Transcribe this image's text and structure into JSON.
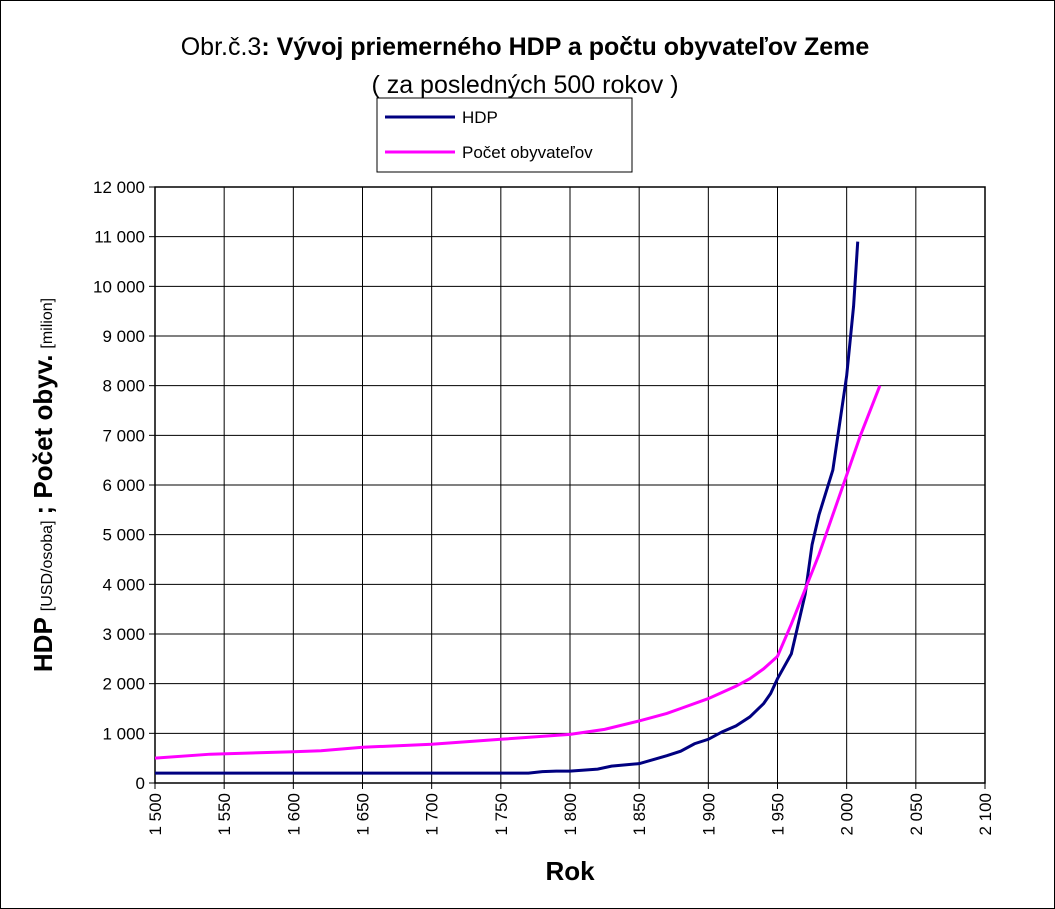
{
  "chart_data": {
    "type": "line",
    "title_prefix": "Obr.č.3",
    "title": ": Vývoj priemerného HDP a počtu obyvateľov Zeme",
    "subtitle": "( za posledných 500 rokov )",
    "xlabel": "Rok",
    "ylabel": [
      {
        "text": "HDP",
        "bold": true
      },
      {
        "text": "[USD/osoba]",
        "bold": false
      },
      {
        "text": "; Počet obyv.",
        "bold": true
      },
      {
        "text": "[milion]",
        "bold": false
      }
    ],
    "xlim": [
      1500,
      2100
    ],
    "xticks": [
      {
        "value": 1500,
        "label": "1 500"
      },
      {
        "value": 1550,
        "label": "1 550"
      },
      {
        "value": 1600,
        "label": "1 600"
      },
      {
        "value": 1650,
        "label": "1 650"
      },
      {
        "value": 1700,
        "label": "1 700"
      },
      {
        "value": 1750,
        "label": "1 750"
      },
      {
        "value": 1800,
        "label": "1 800"
      },
      {
        "value": 1850,
        "label": "1 850"
      },
      {
        "value": 1900,
        "label": "1 900"
      },
      {
        "value": 1950,
        "label": "1 950"
      },
      {
        "value": 2000,
        "label": "2 000"
      },
      {
        "value": 2050,
        "label": "2 050"
      },
      {
        "value": 2100,
        "label": "2 100"
      }
    ],
    "ylim": [
      0,
      12000
    ],
    "yticks": [
      0,
      {
        "value": 1000,
        "label": "1 000"
      },
      {
        "value": 2000,
        "label": "2 000"
      },
      {
        "value": 3000,
        "label": "3 000"
      },
      {
        "value": 4000,
        "label": "4 000"
      },
      {
        "value": 5000,
        "label": "5 000"
      },
      {
        "value": 6000,
        "label": "6 000"
      },
      {
        "value": 7000,
        "label": "7 000"
      },
      {
        "value": 8000,
        "label": "8 000"
      },
      {
        "value": 9000,
        "label": "9 000"
      },
      {
        "value": 10000,
        "label": "10 000"
      },
      {
        "value": 11000,
        "label": "11 000"
      },
      {
        "value": 12000,
        "label": "12 000"
      }
    ],
    "grid": true,
    "legend": "top",
    "series": [
      {
        "name": "HDP",
        "color": "#000080",
        "x": [
          1500,
          1550,
          1600,
          1650,
          1700,
          1750,
          1770,
          1780,
          1790,
          1800,
          1820,
          1830,
          1850,
          1860,
          1870,
          1880,
          1890,
          1900,
          1910,
          1920,
          1930,
          1940,
          1945,
          1950,
          1960,
          1970,
          1975,
          1980,
          1990,
          2000,
          2005,
          2008
        ],
        "values": [
          200,
          200,
          200,
          200,
          200,
          200,
          200,
          230,
          240,
          240,
          280,
          340,
          390,
          470,
          550,
          640,
          790,
          880,
          1030,
          1150,
          1330,
          1600,
          1800,
          2100,
          2600,
          3800,
          4800,
          5400,
          6300,
          8200,
          9600,
          10900
        ]
      },
      {
        "name": "Počet obyvateľov",
        "color": "#ff00ff",
        "x": [
          1500,
          1540,
          1600,
          1620,
          1650,
          1700,
          1750,
          1800,
          1825,
          1850,
          1870,
          1880,
          1900,
          1920,
          1930,
          1940,
          1950,
          1960,
          1970,
          1980,
          1990,
          2000,
          2010,
          2024
        ],
        "values": [
          500,
          580,
          630,
          650,
          720,
          780,
          880,
          980,
          1080,
          1250,
          1400,
          1500,
          1700,
          1950,
          2100,
          2300,
          2550,
          3200,
          3900,
          4600,
          5400,
          6200,
          7000,
          8000
        ]
      }
    ]
  }
}
